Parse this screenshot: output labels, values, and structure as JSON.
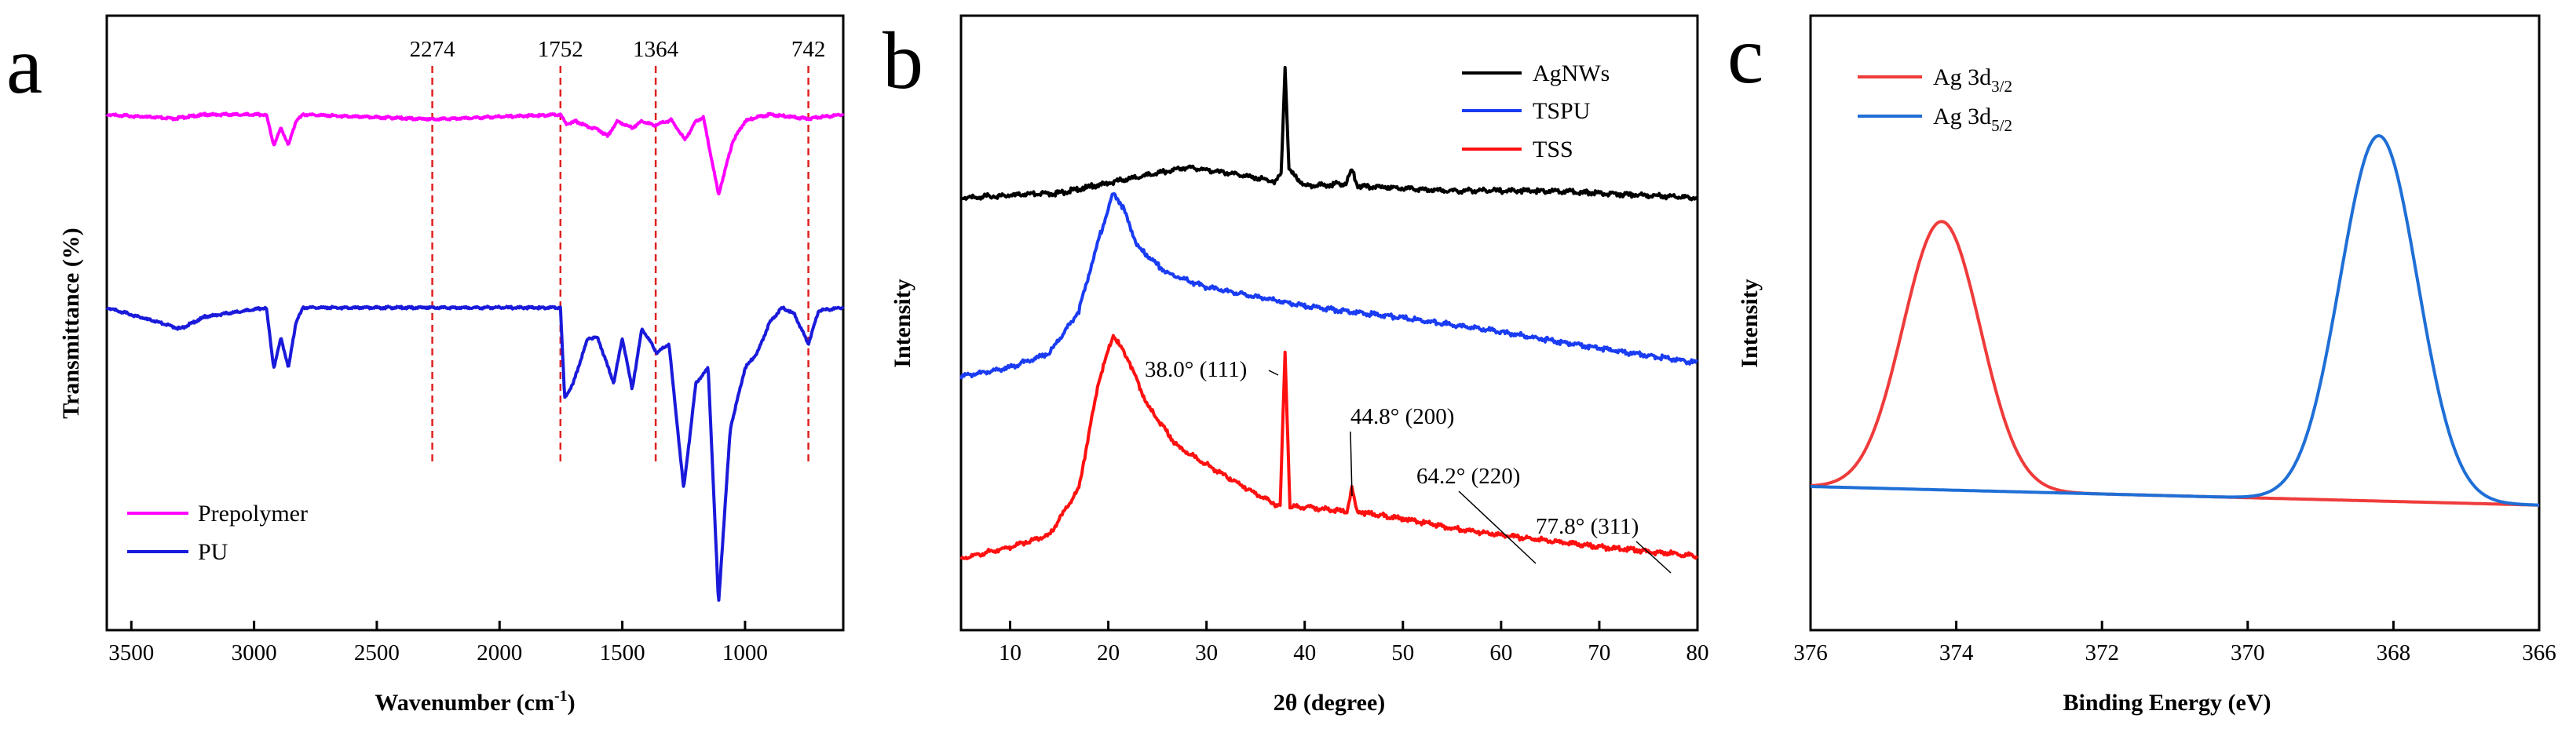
{
  "chart_data": [
    {
      "panel_letter": "a",
      "type": "line",
      "xlabel": "Wavenumber (cm",
      "xlabel_sup": "-1",
      "xlabel_end": ")",
      "ylabel": "Transmittance (%)",
      "xlim": [
        3600,
        600
      ],
      "xticks": [
        3500,
        3000,
        2500,
        2000,
        1500,
        1000
      ],
      "marked_peaks": [
        "2274",
        "1752",
        "1364",
        "742"
      ],
      "peak_positions": [
        2274,
        1752,
        1364,
        742
      ],
      "colors": {
        "Prepolymer": "#ff00ff",
        "PU": "#1a1adb"
      },
      "legend": [
        "Prepolymer",
        "PU"
      ],
      "series": [
        {
          "name": "Prepolymer",
          "baseline": 0.0,
          "values": [
            [
              3600,
              0.0
            ],
            [
              3330,
              0.03
            ],
            [
              3200,
              0.0
            ],
            [
              2950,
              0.0
            ],
            [
              2920,
              0.23
            ],
            [
              2890,
              0.1
            ],
            [
              2860,
              0.23
            ],
            [
              2830,
              0.05
            ],
            [
              2800,
              0.0
            ],
            [
              2274,
              0.035
            ],
            [
              1752,
              0.0
            ],
            [
              1730,
              0.07
            ],
            [
              1690,
              0.05
            ],
            [
              1640,
              0.09
            ],
            [
              1600,
              0.11
            ],
            [
              1560,
              0.16
            ],
            [
              1520,
              0.05
            ],
            [
              1460,
              0.1
            ],
            [
              1420,
              0.05
            ],
            [
              1370,
              0.08
            ],
            [
              1300,
              0.04
            ],
            [
              1245,
              0.19
            ],
            [
              1200,
              0.05
            ],
            [
              1170,
              0.02
            ],
            [
              1108,
              0.6
            ],
            [
              1050,
              0.2
            ],
            [
              1000,
              0.05
            ],
            [
              950,
              0.02
            ],
            [
              900,
              0.0
            ],
            [
              742,
              0.03
            ],
            [
              600,
              0.0
            ]
          ]
        },
        {
          "name": "PU",
          "baseline": 0.0,
          "values": [
            [
              3600,
              0.0
            ],
            [
              3300,
              0.07
            ],
            [
              3200,
              0.03
            ],
            [
              2950,
              0.0
            ],
            [
              2920,
              0.2
            ],
            [
              2890,
              0.1
            ],
            [
              2860,
              0.2
            ],
            [
              2830,
              0.05
            ],
            [
              2800,
              0.0
            ],
            [
              2274,
              0.0
            ],
            [
              1752,
              0.0
            ],
            [
              1735,
              0.3
            ],
            [
              1700,
              0.25
            ],
            [
              1640,
              0.1
            ],
            [
              1600,
              0.1
            ],
            [
              1535,
              0.25
            ],
            [
              1500,
              0.1
            ],
            [
              1460,
              0.27
            ],
            [
              1420,
              0.07
            ],
            [
              1380,
              0.12
            ],
            [
              1360,
              0.15
            ],
            [
              1310,
              0.12
            ],
            [
              1250,
              0.6
            ],
            [
              1200,
              0.25
            ],
            [
              1150,
              0.2
            ],
            [
              1108,
              0.98
            ],
            [
              1060,
              0.4
            ],
            [
              1000,
              0.2
            ],
            [
              950,
              0.15
            ],
            [
              900,
              0.05
            ],
            [
              850,
              0.0
            ],
            [
              800,
              0.02
            ],
            [
              742,
              0.12
            ],
            [
              700,
              0.01
            ],
            [
              600,
              0.0
            ]
          ]
        }
      ]
    },
    {
      "panel_letter": "b",
      "type": "line",
      "xlabel": "2θ (degree)",
      "ylabel": "Intensity",
      "xlim": [
        5,
        80
      ],
      "xticks": [
        10,
        20,
        30,
        40,
        50,
        60,
        70,
        80
      ],
      "legend": [
        "AgNWs",
        "TSPU",
        "TSS"
      ],
      "colors": {
        "AgNWs": "#000000",
        "TSPU": "#1a3cf2",
        "TSS": "#ff1010"
      },
      "peak_labels": [
        "38.0° (111)",
        "44.8° (200)",
        "64.2° (220)",
        "77.8° (311)"
      ],
      "series": [
        {
          "name": "AgNWs",
          "values": [
            [
              5,
              0.0
            ],
            [
              15,
              0.02
            ],
            [
              22,
              0.08
            ],
            [
              28,
              0.13
            ],
            [
              33,
              0.1
            ],
            [
              37,
              0.07
            ],
            [
              37.6,
              0.1
            ],
            [
              38.0,
              0.56
            ],
            [
              38.4,
              0.12
            ],
            [
              40,
              0.05
            ],
            [
              44.2,
              0.06
            ],
            [
              44.8,
              0.12
            ],
            [
              45.4,
              0.05
            ],
            [
              55,
              0.03
            ],
            [
              64.2,
              0.03
            ],
            [
              70,
              0.02
            ],
            [
              80,
              0.0
            ]
          ]
        },
        {
          "name": "TSPU",
          "values": [
            [
              5,
              0.0
            ],
            [
              10,
              0.04
            ],
            [
              14,
              0.1
            ],
            [
              17,
              0.28
            ],
            [
              19,
              0.58
            ],
            [
              20.5,
              0.78
            ],
            [
              21.5,
              0.72
            ],
            [
              23,
              0.55
            ],
            [
              26,
              0.44
            ],
            [
              30,
              0.38
            ],
            [
              40,
              0.3
            ],
            [
              50,
              0.25
            ],
            [
              60,
              0.19
            ],
            [
              70,
              0.12
            ],
            [
              80,
              0.06
            ]
          ]
        },
        {
          "name": "TSS",
          "values": [
            [
              5,
              0.0
            ],
            [
              10,
              0.05
            ],
            [
              14,
              0.1
            ],
            [
              17,
              0.3
            ],
            [
              19,
              0.75
            ],
            [
              20.5,
              0.95
            ],
            [
              22,
              0.85
            ],
            [
              24,
              0.65
            ],
            [
              27,
              0.48
            ],
            [
              30,
              0.4
            ],
            [
              34,
              0.3
            ],
            [
              37.5,
              0.22
            ],
            [
              38.0,
              0.88
            ],
            [
              38.5,
              0.22
            ],
            [
              40,
              0.22
            ],
            [
              44.3,
              0.2
            ],
            [
              44.8,
              0.3
            ],
            [
              45.3,
              0.2
            ],
            [
              50,
              0.17
            ],
            [
              55,
              0.13
            ],
            [
              60,
              0.1
            ],
            [
              64.2,
              0.08
            ],
            [
              70,
              0.05
            ],
            [
              77.8,
              0.02
            ],
            [
              80,
              0.01
            ]
          ]
        }
      ]
    },
    {
      "panel_letter": "c",
      "type": "line",
      "xlabel": "Binding Energy (eV)",
      "ylabel": "Intensity",
      "xlim": [
        376,
        366
      ],
      "xticks": [
        376,
        374,
        372,
        370,
        368,
        366
      ],
      "legend": [
        {
          "main": "Ag 3d",
          "sub": "3/2"
        },
        {
          "main": "Ag 3d",
          "sub": "5/2"
        }
      ],
      "colors": {
        "Ag 3d3/2": "#ef3b3b",
        "Ag 3d5/2": "#1f6fd6"
      },
      "series": [
        {
          "name": "Ag 3d3/2",
          "center": 374.2,
          "height": 0.72,
          "fwhm": 1.25
        },
        {
          "name": "Ag 3d5/2",
          "center": 368.2,
          "height": 0.98,
          "fwhm": 1.25
        }
      ],
      "background": {
        "start": 0.0,
        "end": -0.05
      }
    }
  ]
}
